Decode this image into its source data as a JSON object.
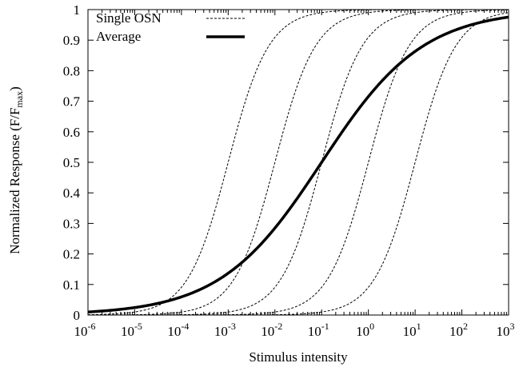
{
  "chart_data": {
    "type": "line",
    "xlabel": "Stimulus intensity",
    "ylabel_main": "Normalized Response (F/F",
    "ylabel_sub": "max",
    "ylabel_close": ")",
    "xscale": "log",
    "xlim": [
      1e-06,
      1000
    ],
    "ylim": [
      0,
      1
    ],
    "grid": false,
    "legend_position": "top-left",
    "x_ticks": [
      {
        "base": "10",
        "exp": "-6",
        "value": 1e-06
      },
      {
        "base": "10",
        "exp": "-5",
        "value": 1e-05
      },
      {
        "base": "10",
        "exp": "-4",
        "value": 0.0001
      },
      {
        "base": "10",
        "exp": "-3",
        "value": 0.001
      },
      {
        "base": "10",
        "exp": "-2",
        "value": 0.01
      },
      {
        "base": "10",
        "exp": "-1",
        "value": 0.1
      },
      {
        "base": "10",
        "exp": "0",
        "value": 1
      },
      {
        "base": "10",
        "exp": "1",
        "value": 10
      },
      {
        "base": "10",
        "exp": "2",
        "value": 100
      },
      {
        "base": "10",
        "exp": "3",
        "value": 1000
      }
    ],
    "y_ticks": [
      "0",
      "0.1",
      "0.2",
      "0.3",
      "0.4",
      "0.5",
      "0.6",
      "0.7",
      "0.8",
      "0.9",
      "1"
    ],
    "series": [
      {
        "name": "Single OSN",
        "style": "dashed",
        "color": "#000000",
        "curves": [
          {
            "ec50": 0.001,
            "hill": 1.0
          },
          {
            "ec50": 0.01,
            "hill": 1.0
          },
          {
            "ec50": 0.1,
            "hill": 1.0
          },
          {
            "ec50": 1,
            "hill": 1.0
          },
          {
            "ec50": 10,
            "hill": 1.0
          }
        ]
      },
      {
        "name": "Average",
        "style": "solid-thick",
        "color": "#000000",
        "curves": [
          {
            "ec50": 0.1,
            "hill": 0.4
          }
        ]
      }
    ]
  }
}
